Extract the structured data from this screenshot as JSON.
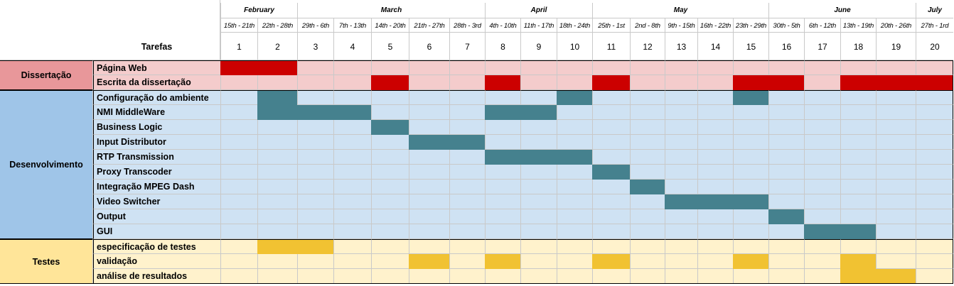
{
  "chart_data": {
    "type": "gantt",
    "header_title": "Tarefas",
    "months": [
      {
        "name": "February",
        "start": 1,
        "end": 2
      },
      {
        "name": "March",
        "start": 3,
        "end": 7
      },
      {
        "name": "April",
        "start": 8,
        "end": 10
      },
      {
        "name": "May",
        "start": 11,
        "end": 15
      },
      {
        "name": "June",
        "start": 16,
        "end": 19
      },
      {
        "name": "July",
        "start": 20,
        "end": 20
      }
    ],
    "weeks": [
      {
        "num": "1",
        "range": "15th - 21th"
      },
      {
        "num": "2",
        "range": "22th - 28th"
      },
      {
        "num": "3",
        "range": "29th - 6th"
      },
      {
        "num": "4",
        "range": "7th - 13th"
      },
      {
        "num": "5",
        "range": "14th - 20th"
      },
      {
        "num": "6",
        "range": "21th - 27th"
      },
      {
        "num": "7",
        "range": "28th - 3rd"
      },
      {
        "num": "8",
        "range": "4th - 10th"
      },
      {
        "num": "9",
        "range": "11th - 17th"
      },
      {
        "num": "10",
        "range": "18th - 24th"
      },
      {
        "num": "11",
        "range": "25th - 1st"
      },
      {
        "num": "12",
        "range": "2nd - 8th"
      },
      {
        "num": "13",
        "range": "9th - 15th"
      },
      {
        "num": "14",
        "range": "16th - 22th"
      },
      {
        "num": "15",
        "range": "23th - 29th"
      },
      {
        "num": "16",
        "range": "30th - 5th"
      },
      {
        "num": "17",
        "range": "6th - 12th"
      },
      {
        "num": "18",
        "range": "13th - 19th"
      },
      {
        "num": "19",
        "range": "20th - 26th"
      },
      {
        "num": "20",
        "range": "27th - 1rd"
      }
    ],
    "groups": [
      {
        "name": "Dissertação",
        "colors": {
          "label": "#e8979a",
          "task": "#f4cccc",
          "cell": "#f4cccc",
          "filled": "#cc0000"
        },
        "tasks": [
          {
            "name": "Página Web",
            "weeks": [
              1,
              2
            ]
          },
          {
            "name": "Escrita da dissertação",
            "weeks": [
              5,
              8,
              11,
              15,
              16,
              18,
              19,
              20
            ]
          }
        ]
      },
      {
        "name": "Desenvolvimento",
        "colors": {
          "label": "#9fc5e8",
          "task": "#cfe2f3",
          "cell": "#cfe2f3",
          "filled": "#45818e"
        },
        "tasks": [
          {
            "name": "Configuração do ambiente",
            "weeks": [
              2,
              10,
              15
            ]
          },
          {
            "name": "NMI MiddleWare",
            "weeks": [
              2,
              3,
              4,
              8,
              9
            ]
          },
          {
            "name": "Business Logic",
            "weeks": [
              5
            ]
          },
          {
            "name": "Input Distributor",
            "weeks": [
              6,
              7
            ]
          },
          {
            "name": "RTP Transmission",
            "weeks": [
              8,
              9,
              10
            ]
          },
          {
            "name": "Proxy Transcoder",
            "weeks": [
              11
            ]
          },
          {
            "name": "Integração MPEG Dash",
            "weeks": [
              12
            ]
          },
          {
            "name": "Video Switcher",
            "weeks": [
              13,
              14,
              15
            ]
          },
          {
            "name": "Output",
            "weeks": [
              16
            ]
          },
          {
            "name": "GUI",
            "weeks": [
              17,
              18
            ]
          }
        ]
      },
      {
        "name": "Testes",
        "colors": {
          "label": "#ffe599",
          "task": "#fff2cc",
          "cell": "#fff2cc",
          "filled": "#f1c232"
        },
        "tasks": [
          {
            "name": "especificação de testes",
            "weeks": [
              2,
              3
            ]
          },
          {
            "name": "validação",
            "weeks": [
              6,
              8,
              11,
              15,
              18
            ]
          },
          {
            "name": "análise de resultados",
            "weeks": [
              18,
              19
            ]
          }
        ]
      }
    ]
  }
}
